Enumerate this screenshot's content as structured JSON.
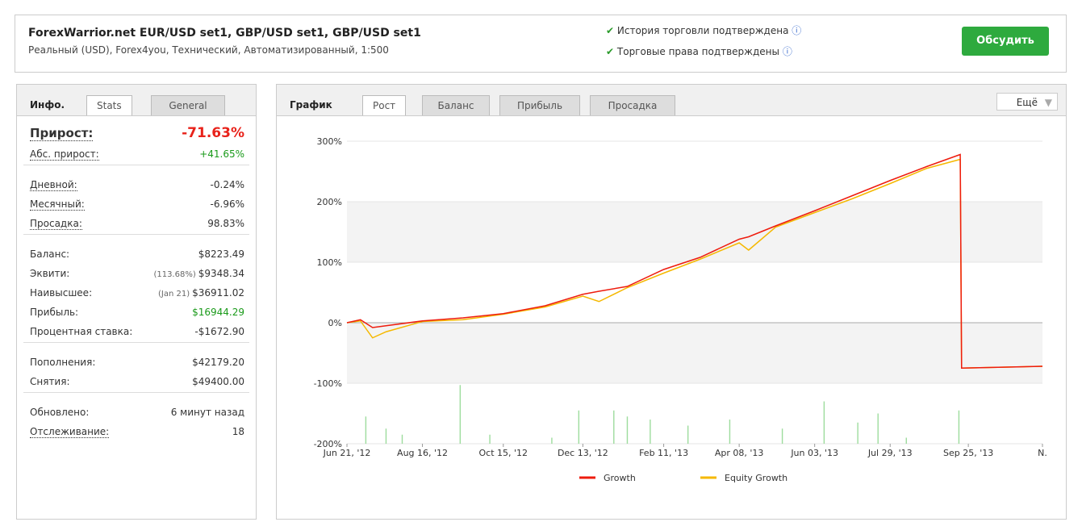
{
  "header": {
    "title": "ForexWarrior.net EUR/USD set1, GBP/USD set1, GBP/USD set1",
    "subtitle": "Реальный (USD), Forex4you, Технический, Автоматизированный, 1:500",
    "checks": [
      "История торговли подтверждена",
      "Торговые права подтверждены"
    ],
    "button": "Обсудить"
  },
  "info": {
    "tabs": [
      "Инфо.",
      "Stats",
      "General"
    ],
    "groups": [
      [
        {
          "label": "Прирост:",
          "value": "-71.63%",
          "color": "#e8221a"
        },
        {
          "label": "Абс. прирост:",
          "value": "+41.65%",
          "color": "#1a9a1a"
        }
      ],
      [
        {
          "label": "Дневной:",
          "value": "-0.24%"
        },
        {
          "label": "Месячный:",
          "value": "-6.96%"
        },
        {
          "label": "Просадка:",
          "value": "98.83%"
        }
      ],
      [
        {
          "label": "Баланс:",
          "value": "$8223.49"
        },
        {
          "label": "Эквити:",
          "note": "(113.68%)",
          "value": "$9348.34"
        },
        {
          "label": "Наивысшее:",
          "note": "(Jan 21)",
          "value": "$36911.02"
        },
        {
          "label": "Прибыль:",
          "value": "$16944.29",
          "color": "#1a9a1a"
        },
        {
          "label": "Процентная ставка:",
          "value": "-$1672.90"
        }
      ],
      [
        {
          "label": "Пополнения:",
          "value": "$42179.20"
        },
        {
          "label": "Снятия:",
          "value": "$49400.00"
        }
      ],
      [
        {
          "label": "Обновлено:",
          "value": "6 минут назад"
        },
        {
          "label": "Отслеживание:",
          "value": "18"
        }
      ]
    ]
  },
  "chart_tabs": [
    "График",
    "Рост",
    "Баланс",
    "Прибыль",
    "Просадка"
  ],
  "more": "Ещё",
  "chart_data": {
    "type": "line",
    "x": [
      "2012-06-21",
      "2012-07-01",
      "2012-07-10",
      "2012-07-20",
      "2012-08-16",
      "2012-09-15",
      "2012-10-15",
      "2012-11-15",
      "2012-12-13",
      "2012-12-25",
      "2013-01-15",
      "2013-02-11",
      "2013-03-10",
      "2013-04-08",
      "2013-04-15",
      "2013-05-05",
      "2013-06-03",
      "2013-07-01",
      "2013-07-29",
      "2013-08-25",
      "2013-09-19",
      "2013-09-20",
      "2013-11-19"
    ],
    "series": [
      {
        "name": "Growth",
        "color": "#ee1c0e",
        "values": [
          0,
          5,
          -8,
          -5,
          3,
          8,
          15,
          28,
          47,
          52,
          60,
          88,
          108,
          138,
          142,
          160,
          185,
          210,
          235,
          258,
          278,
          -75,
          -72
        ]
      },
      {
        "name": "Equity Growth",
        "color": "#f5b800",
        "values": [
          0,
          3,
          -25,
          -15,
          2,
          5,
          14,
          26,
          44,
          35,
          58,
          82,
          105,
          132,
          120,
          158,
          182,
          205,
          230,
          255,
          270,
          -75,
          -72
        ]
      }
    ],
    "bars": {
      "color": "#9ddc9d",
      "x": [
        "2012-07-05",
        "2012-07-20",
        "2012-08-01",
        "2012-09-13",
        "2012-10-05",
        "2012-11-20",
        "2012-12-10",
        "2013-01-05",
        "2013-01-15",
        "2013-02-01",
        "2013-03-01",
        "2013-04-01",
        "2013-05-10",
        "2013-06-10",
        "2013-07-05",
        "2013-07-20",
        "2013-08-10",
        "2013-09-18"
      ],
      "values": [
        45,
        25,
        15,
        97,
        15,
        10,
        55,
        55,
        45,
        40,
        30,
        40,
        25,
        70,
        35,
        50,
        10,
        55
      ]
    },
    "xlim": [
      "2012-06-21",
      "2013-11-19"
    ],
    "xticks": [
      {
        "value": "2012-06-21",
        "label": "Jun 21, '12"
      },
      {
        "value": "2012-08-16",
        "label": "Aug 16, '12"
      },
      {
        "value": "2012-10-15",
        "label": "Oct 15, '12"
      },
      {
        "value": "2012-12-13",
        "label": "Dec 13, '12"
      },
      {
        "value": "2013-02-11",
        "label": "Feb 11, '13"
      },
      {
        "value": "2013-04-08",
        "label": "Apr 08, '13"
      },
      {
        "value": "2013-06-03",
        "label": "Jun 03, '13"
      },
      {
        "value": "2013-07-29",
        "label": "Jul 29, '13"
      },
      {
        "value": "2013-09-25",
        "label": "Sep 25, '13"
      },
      {
        "value": "2013-11-19",
        "label": "N."
      }
    ],
    "ylim": [
      -200,
      300
    ],
    "yticks": [
      {
        "value": -200,
        "label": "-200%"
      },
      {
        "value": -100,
        "label": "-100%"
      },
      {
        "value": 0,
        "label": "0%"
      },
      {
        "value": 100,
        "label": "100%"
      },
      {
        "value": 200,
        "label": "200%"
      },
      {
        "value": 300,
        "label": "300%"
      }
    ]
  }
}
